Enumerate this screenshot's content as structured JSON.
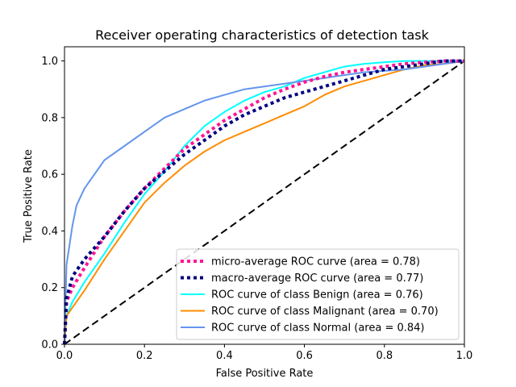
{
  "chart_data": {
    "type": "line",
    "title": "Receiver operating characteristics of detection task",
    "xlabel": "False Positive Rate",
    "ylabel": "True Positive Rate",
    "xlim": [
      0.0,
      1.0
    ],
    "ylim": [
      0.0,
      1.05
    ],
    "xticks": [
      "0.0",
      "0.2",
      "0.4",
      "0.6",
      "0.8",
      "1.0"
    ],
    "yticks": [
      "0.0",
      "0.2",
      "0.4",
      "0.6",
      "0.8",
      "1.0"
    ],
    "grid": false,
    "legend_position": "lower-right",
    "series": [
      {
        "name": "micro-average ROC curve (area = 0.78)",
        "color": "#ff1493",
        "style": "dotted",
        "x": [
          0.0,
          0.005,
          0.02,
          0.05,
          0.1,
          0.15,
          0.2,
          0.25,
          0.3,
          0.35,
          0.4,
          0.45,
          0.5,
          0.55,
          0.6,
          0.65,
          0.7,
          0.75,
          0.8,
          0.85,
          0.9,
          0.95,
          1.0
        ],
        "y": [
          0.0,
          0.15,
          0.2,
          0.27,
          0.38,
          0.47,
          0.55,
          0.62,
          0.69,
          0.74,
          0.79,
          0.83,
          0.87,
          0.9,
          0.925,
          0.945,
          0.96,
          0.97,
          0.98,
          0.99,
          0.995,
          1.0,
          1.0
        ]
      },
      {
        "name": "macro-average ROC curve (area = 0.77)",
        "color": "#000080",
        "style": "dotted",
        "x": [
          0.0,
          0.005,
          0.02,
          0.05,
          0.1,
          0.15,
          0.2,
          0.25,
          0.3,
          0.35,
          0.4,
          0.45,
          0.5,
          0.55,
          0.6,
          0.65,
          0.7,
          0.75,
          0.8,
          0.85,
          0.9,
          0.95,
          1.0
        ],
        "y": [
          0.0,
          0.16,
          0.24,
          0.3,
          0.38,
          0.47,
          0.55,
          0.61,
          0.67,
          0.72,
          0.77,
          0.81,
          0.84,
          0.87,
          0.89,
          0.91,
          0.93,
          0.95,
          0.97,
          0.98,
          0.99,
          1.0,
          1.0
        ]
      },
      {
        "name": "ROC curve of class Benign (area = 0.76)",
        "color": "#00ffff",
        "style": "solid",
        "x": [
          0.0,
          0.005,
          0.02,
          0.05,
          0.1,
          0.15,
          0.2,
          0.25,
          0.3,
          0.35,
          0.4,
          0.45,
          0.5,
          0.55,
          0.6,
          0.65,
          0.7,
          0.75,
          0.8,
          0.85,
          0.9,
          0.95,
          1.0
        ],
        "y": [
          0.0,
          0.1,
          0.15,
          0.22,
          0.32,
          0.43,
          0.53,
          0.61,
          0.7,
          0.77,
          0.82,
          0.86,
          0.89,
          0.91,
          0.94,
          0.96,
          0.98,
          0.99,
          0.995,
          1.0,
          1.0,
          1.0,
          1.0
        ]
      },
      {
        "name": "ROC curve of class Malignant (area = 0.70)",
        "color": "#ff8c00",
        "style": "solid",
        "x": [
          0.0,
          0.005,
          0.02,
          0.05,
          0.1,
          0.15,
          0.2,
          0.25,
          0.3,
          0.35,
          0.4,
          0.45,
          0.5,
          0.55,
          0.6,
          0.65,
          0.7,
          0.75,
          0.8,
          0.85,
          0.9,
          0.95,
          1.0
        ],
        "y": [
          0.0,
          0.1,
          0.13,
          0.19,
          0.3,
          0.4,
          0.5,
          0.57,
          0.63,
          0.68,
          0.72,
          0.75,
          0.78,
          0.81,
          0.84,
          0.88,
          0.91,
          0.93,
          0.95,
          0.97,
          0.985,
          0.99,
          1.0
        ]
      },
      {
        "name": "ROC curve of class Normal (area = 0.84)",
        "color": "#6495ed",
        "style": "solid",
        "x": [
          0.0,
          0.005,
          0.02,
          0.03,
          0.05,
          0.08,
          0.1,
          0.15,
          0.2,
          0.25,
          0.3,
          0.35,
          0.4,
          0.45,
          0.5,
          0.55,
          0.6,
          0.65,
          0.7,
          0.75,
          0.8,
          0.85,
          0.9,
          0.95,
          1.0
        ],
        "y": [
          0.0,
          0.28,
          0.42,
          0.49,
          0.55,
          0.61,
          0.65,
          0.7,
          0.75,
          0.8,
          0.83,
          0.86,
          0.88,
          0.9,
          0.91,
          0.92,
          0.93,
          0.94,
          0.95,
          0.96,
          0.965,
          0.97,
          0.98,
          0.99,
          1.0
        ]
      },
      {
        "name": "",
        "color": "#000000",
        "style": "dashed",
        "x": [
          0.0,
          1.0
        ],
        "y": [
          0.0,
          1.0
        ]
      }
    ]
  }
}
